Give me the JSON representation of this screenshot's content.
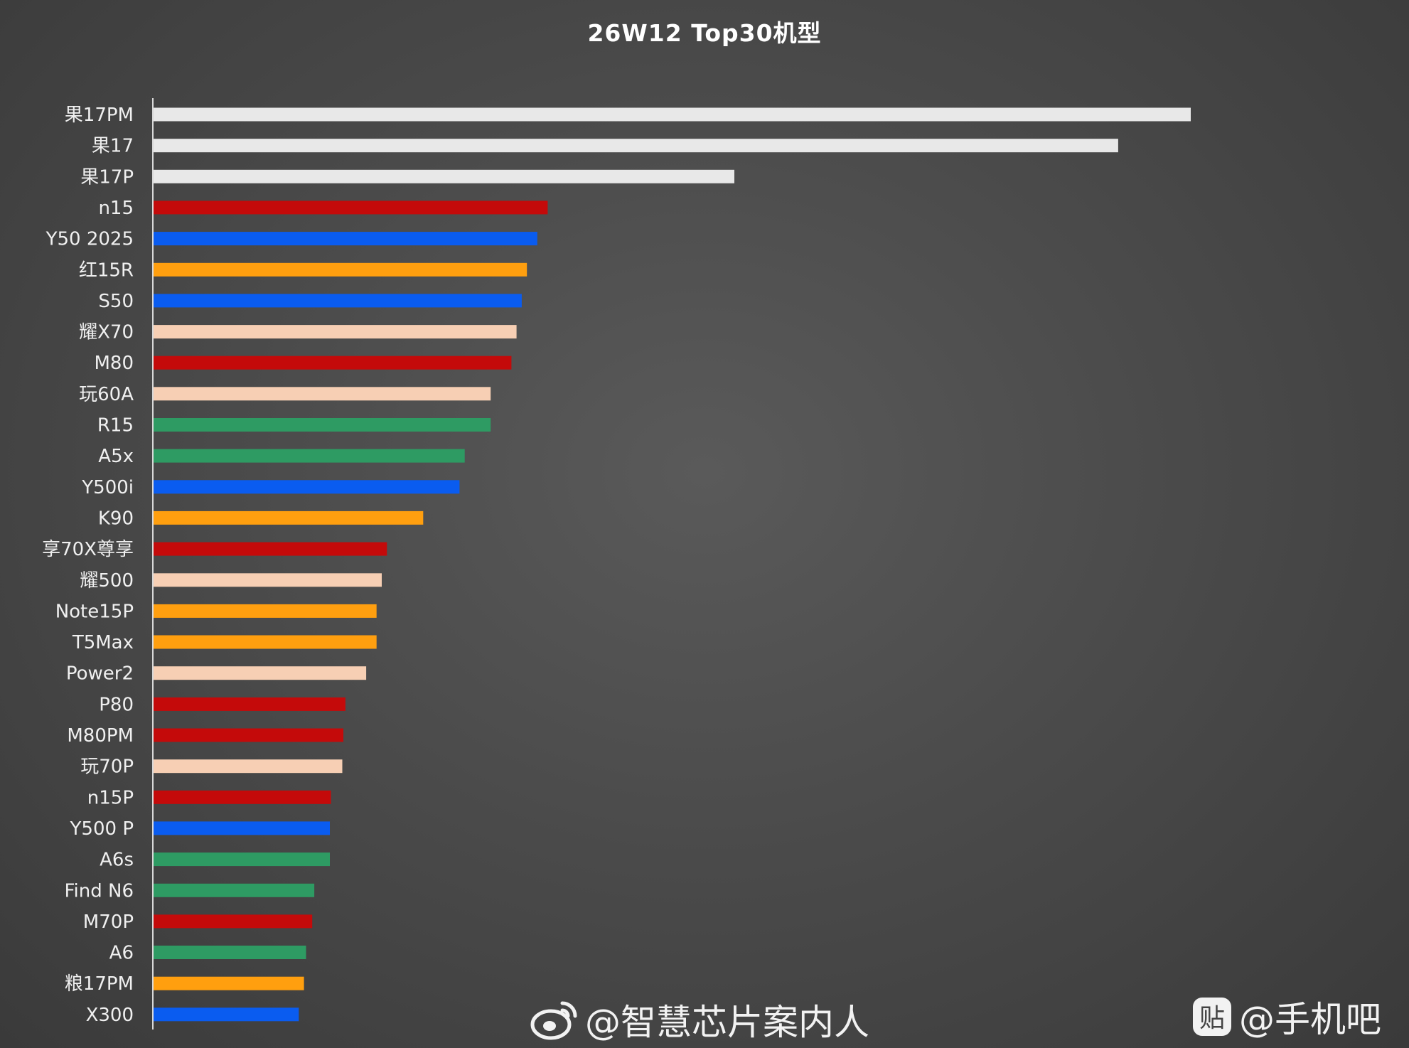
{
  "chart_data": {
    "type": "bar",
    "orientation": "horizontal",
    "title": "26W12 Top30机型",
    "xlabel": "",
    "ylabel": "",
    "grid": false,
    "categories": [
      "果17PM",
      "果17",
      "果17P",
      "n15",
      "Y50 2025",
      "红15R",
      "S50",
      "耀X70",
      "M80",
      "玩60A",
      "R15",
      "A5x",
      "Y500i",
      "K90",
      "享70X尊享",
      "耀500",
      "Note15P",
      "T5Max",
      "Power2",
      "P80",
      "M80PM",
      "玩70P",
      "n15P",
      "Y500 P",
      "A6s",
      "Find N6",
      "M70P",
      "A6",
      "粮17PM",
      "X300"
    ],
    "values": [
      100,
      93,
      56,
      38,
      37,
      36,
      35.5,
      35,
      34.5,
      32.5,
      32.5,
      30,
      29.5,
      26,
      22.5,
      22,
      21.5,
      21.5,
      20.5,
      18.5,
      18.3,
      18.2,
      17.1,
      17,
      17,
      15.5,
      15.3,
      14.7,
      14.5,
      14
    ],
    "colors": [
      "#e8e8e8",
      "#e8e8e8",
      "#e8e8e8",
      "#c40a0a",
      "#0a5cf0",
      "#ff9f0f",
      "#0a5cf0",
      "#f7cfb4",
      "#c40a0a",
      "#f7cfb4",
      "#2e9b63",
      "#2e9b63",
      "#0a5cf0",
      "#ff9f0f",
      "#c40a0a",
      "#f7cfb4",
      "#ff9f0f",
      "#ff9f0f",
      "#f7cfb4",
      "#c40a0a",
      "#c40a0a",
      "#f7cfb4",
      "#c40a0a",
      "#0a5cf0",
      "#2e9b63",
      "#2e9b63",
      "#c40a0a",
      "#2e9b63",
      "#ff9f0f",
      "#0a5cf0"
    ],
    "xlim": [
      0,
      100
    ]
  },
  "watermarks": {
    "weibo": "@智慧芯片案内人",
    "weibo_icon": "weibo-logo-icon",
    "tieba": "@手机吧",
    "tieba_icon": "tieba-logo-icon"
  }
}
